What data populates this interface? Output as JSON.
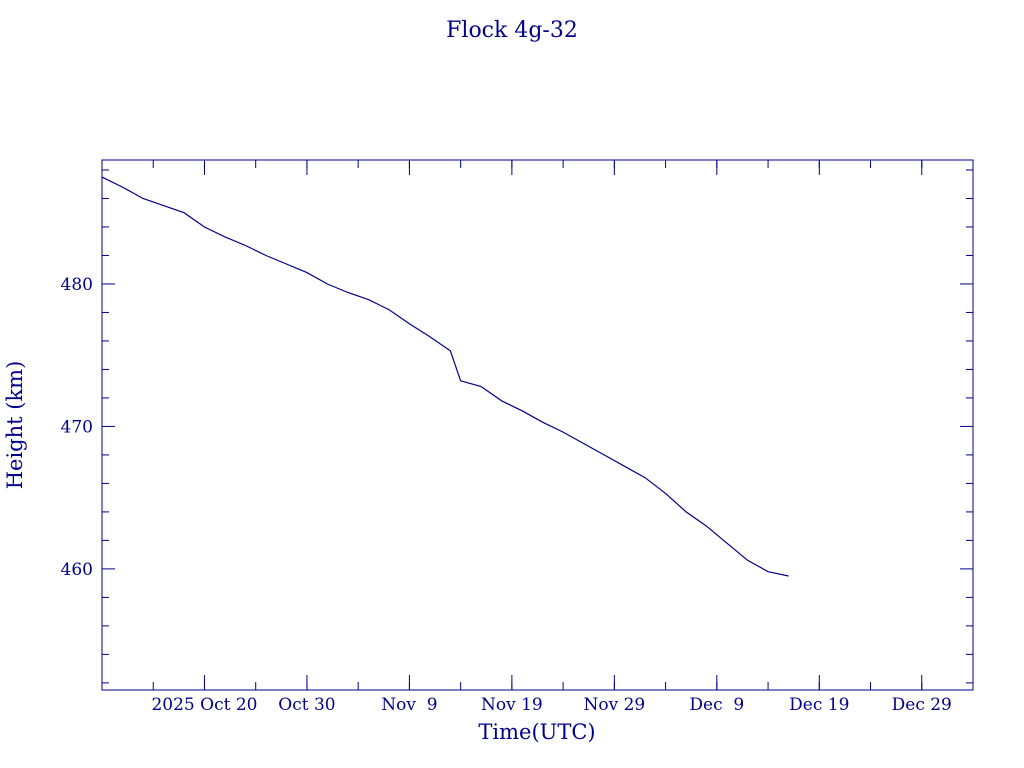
{
  "chart_data": {
    "type": "line",
    "title": "Flock 4g-32",
    "xlabel": "Time(UTC)",
    "ylabel": "Height (km)",
    "x_tick_labels": [
      {
        "label": "2025 Oct 20",
        "date": "2025-10-20"
      },
      {
        "label": "Oct 30",
        "date": "2025-10-30"
      },
      {
        "label": "Nov  9",
        "date": "2025-11-09"
      },
      {
        "label": "Nov 19",
        "date": "2025-11-19"
      },
      {
        "label": "Nov 29",
        "date": "2025-11-29"
      },
      {
        "label": "Dec  9",
        "date": "2025-12-09"
      },
      {
        "label": "Dec 19",
        "date": "2025-12-19"
      },
      {
        "label": "Dec 29",
        "date": "2025-12-29"
      }
    ],
    "xlim": [
      "2025-10-10",
      "2026-01-03"
    ],
    "y_ticks": [
      460,
      470,
      480
    ],
    "ylim": [
      451.5,
      488.7
    ],
    "color": "#00008b",
    "series": [
      {
        "x": [
          "2025-10-10",
          "2025-10-12",
          "2025-10-14",
          "2025-10-16",
          "2025-10-18",
          "2025-10-20",
          "2025-10-22",
          "2025-10-24",
          "2025-10-26",
          "2025-10-28",
          "2025-10-30",
          "2025-11-01",
          "2025-11-03",
          "2025-11-05",
          "2025-11-07",
          "2025-11-09",
          "2025-11-11",
          "2025-11-13",
          "2025-11-14",
          "2025-11-16",
          "2025-11-18",
          "2025-11-20",
          "2025-11-22",
          "2025-11-24",
          "2025-11-26",
          "2025-11-28",
          "2025-11-30",
          "2025-12-02",
          "2025-12-04",
          "2025-12-06",
          "2025-12-08",
          "2025-12-10",
          "2025-12-12",
          "2025-12-14",
          "2025-12-16"
        ],
        "y": [
          487.5,
          486.8,
          486.0,
          485.5,
          485.0,
          484.0,
          483.3,
          482.7,
          482.0,
          481.4,
          480.8,
          480.0,
          479.4,
          478.9,
          478.2,
          477.2,
          476.3,
          475.3,
          473.2,
          472.8,
          471.8,
          471.1,
          470.3,
          469.6,
          468.8,
          468.0,
          467.2,
          466.4,
          465.3,
          464.0,
          463.0,
          461.8,
          460.6,
          459.8,
          459.5
        ]
      }
    ]
  }
}
